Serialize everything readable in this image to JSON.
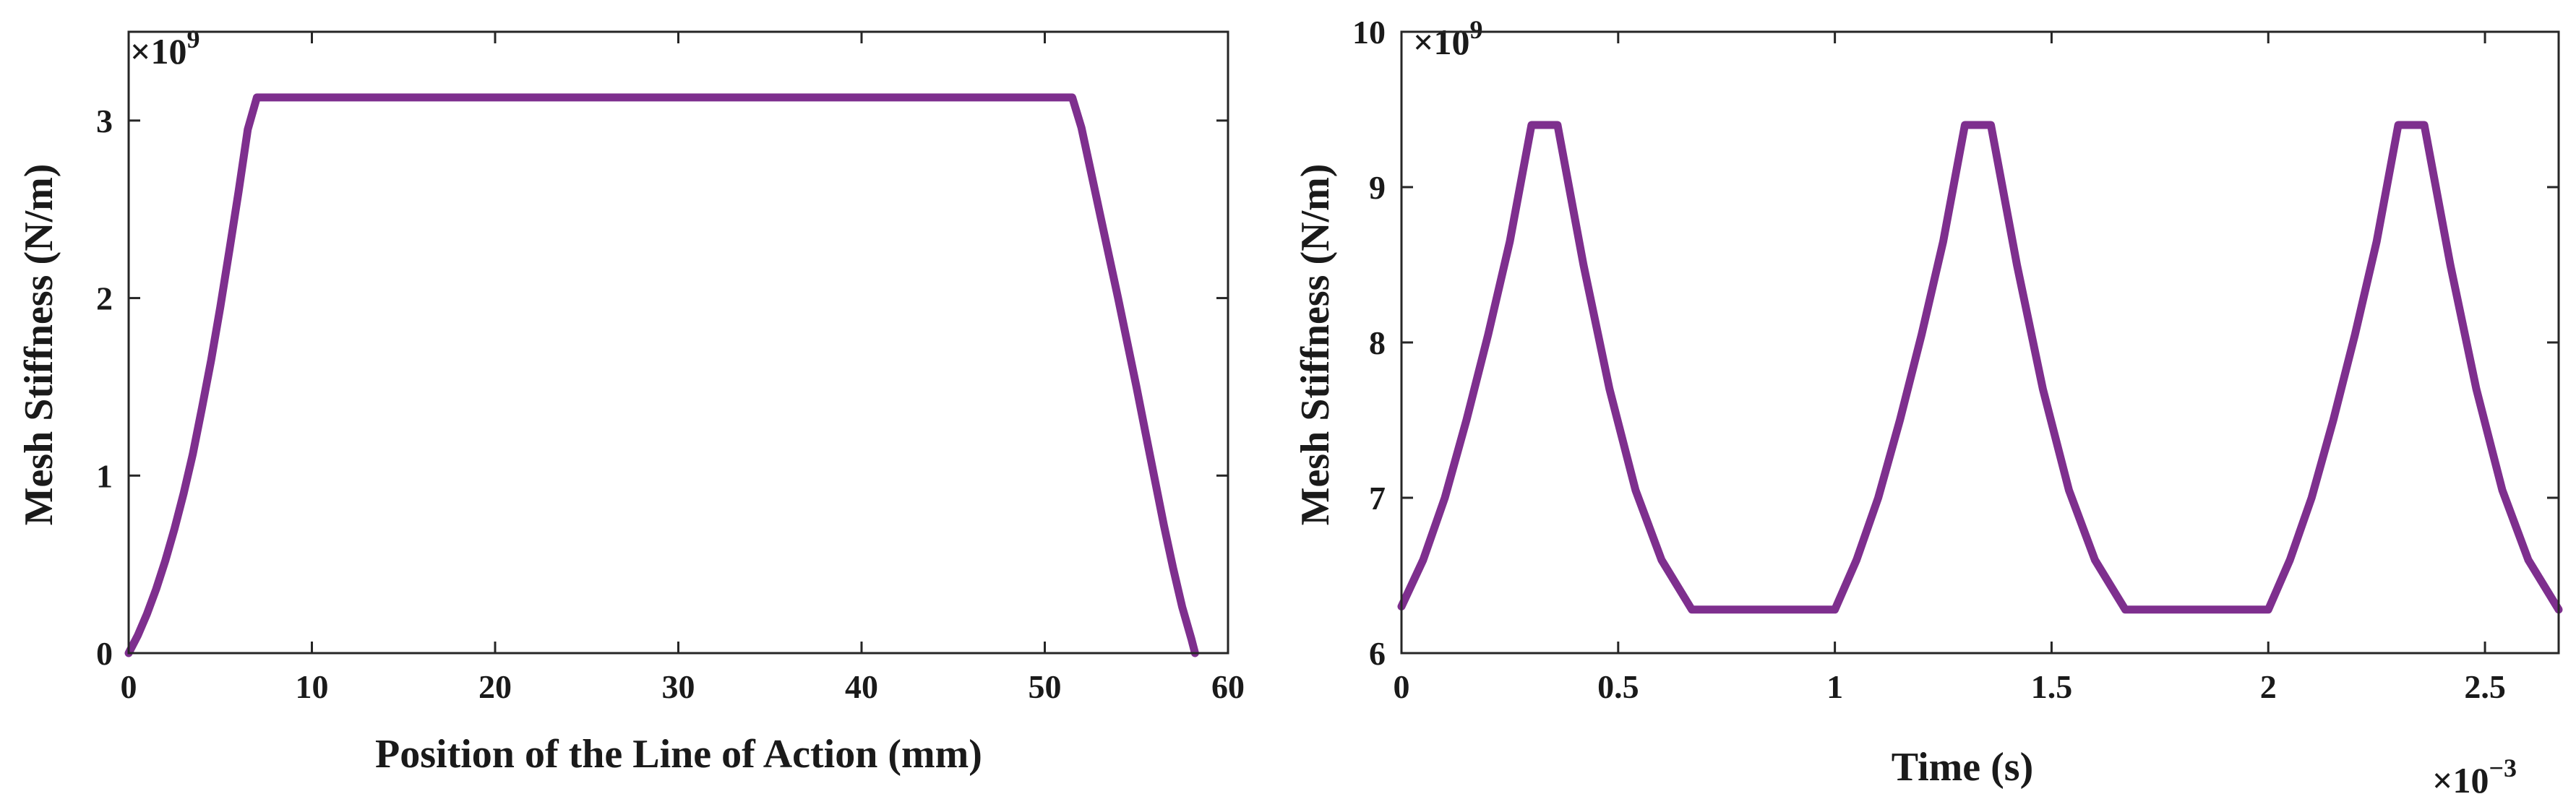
{
  "colors": {
    "series": "#7E2F8E",
    "axis": "#262626"
  },
  "chart_data": [
    {
      "type": "line",
      "title": "",
      "xlabel": "Position of the Line of Action (mm)",
      "ylabel": "Mesh Stiffness (N/m)",
      "y_exponent_label": "×10",
      "y_exponent_power": "9",
      "xlim": [
        0,
        60
      ],
      "ylim": [
        0,
        3.5
      ],
      "xticks": [
        0,
        10,
        20,
        30,
        40,
        50,
        60
      ],
      "xtick_labels": [
        "0",
        "10",
        "20",
        "30",
        "40",
        "50",
        "60"
      ],
      "yticks": [
        0,
        1,
        2,
        3
      ],
      "ytick_labels": [
        "0",
        "1",
        "2",
        "3"
      ],
      "grid": false,
      "series": [
        {
          "x": [
            0,
            0.5,
            1,
            1.5,
            2,
            2.5,
            3,
            3.5,
            4,
            4.5,
            5,
            5.5,
            6,
            6.5,
            7,
            51.5,
            52,
            52.5,
            53,
            53.5,
            54,
            54.5,
            55,
            55.5,
            56,
            56.5,
            57,
            57.5,
            58,
            58.2
          ],
          "y": [
            0,
            0.1,
            0.22,
            0.36,
            0.52,
            0.7,
            0.9,
            1.12,
            1.38,
            1.65,
            1.95,
            2.27,
            2.6,
            2.95,
            3.13,
            3.13,
            2.96,
            2.72,
            2.48,
            2.24,
            2.0,
            1.75,
            1.5,
            1.24,
            0.98,
            0.72,
            0.48,
            0.26,
            0.08,
            0
          ]
        }
      ]
    },
    {
      "type": "line",
      "title": "",
      "xlabel": "Time (s)",
      "ylabel": "Mesh Stiffness (N/m)",
      "y_exponent_label": "×10",
      "y_exponent_power": "9",
      "x_exponent_label": "×10",
      "x_exponent_power": "−3",
      "xlim": [
        0,
        2.67
      ],
      "ylim": [
        6,
        10
      ],
      "xticks": [
        0,
        0.5,
        1,
        1.5,
        2,
        2.5
      ],
      "xtick_labels": [
        "0",
        "0.5",
        "1",
        "1.5",
        "2",
        "2.5"
      ],
      "yticks": [
        6,
        7,
        8,
        9,
        10
      ],
      "ytick_labels": [
        "6",
        "7",
        "8",
        "9",
        "10"
      ],
      "grid": false,
      "series": [
        {
          "x": [
            0,
            0.05,
            0.1,
            0.15,
            0.2,
            0.25,
            0.3,
            0.36,
            0.42,
            0.48,
            0.54,
            0.6,
            0.67,
            1.0,
            1.05,
            1.1,
            1.15,
            1.2,
            1.25,
            1.3,
            1.36,
            1.42,
            1.48,
            1.54,
            1.6,
            1.67,
            2.0,
            2.05,
            2.1,
            2.15,
            2.2,
            2.25,
            2.3,
            2.36,
            2.42,
            2.48,
            2.54,
            2.6,
            2.67
          ],
          "y": [
            6.3,
            6.6,
            7.0,
            7.5,
            8.05,
            8.65,
            9.4,
            9.4,
            8.5,
            7.7,
            7.05,
            6.6,
            6.28,
            6.28,
            6.6,
            7.0,
            7.5,
            8.05,
            8.65,
            9.4,
            9.4,
            8.5,
            7.7,
            7.05,
            6.6,
            6.28,
            6.28,
            6.6,
            7.0,
            7.5,
            8.05,
            8.65,
            9.4,
            9.4,
            8.5,
            7.7,
            7.05,
            6.6,
            6.28
          ]
        }
      ]
    }
  ]
}
